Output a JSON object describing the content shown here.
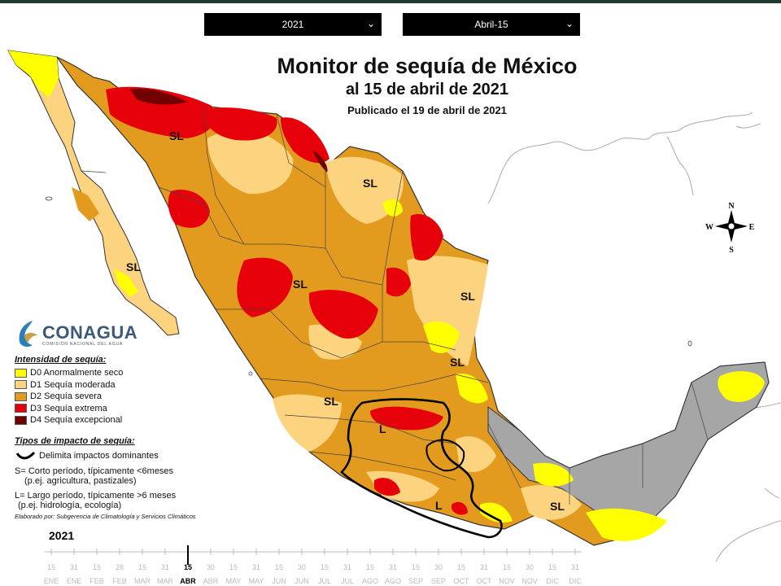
{
  "controls": {
    "year_select": "2021",
    "date_select": "Abril-15"
  },
  "map_title": {
    "title": "Monitor de sequía de México",
    "subtitle": "al 15 de abril de 2021",
    "published": "Publicado el 19 de abril de 2021"
  },
  "compass": {
    "n": "N",
    "s": "S",
    "e": "E",
    "w": "W"
  },
  "logo": {
    "name": "CONAGUA",
    "subtitle": "COMISIÓN NACIONAL DEL AGUA"
  },
  "legend": {
    "intensity_title": "Intensidad de sequía:",
    "levels": [
      {
        "code": "D0",
        "label": "D0 Anormalmente seco",
        "color": "#ffff00"
      },
      {
        "code": "D1",
        "label": "D1 Sequía moderada",
        "color": "#fcd37f"
      },
      {
        "code": "D2",
        "label": "D2 Sequía severa",
        "color": "#e39b1f"
      },
      {
        "code": "D3",
        "label": "D3 Sequía extrema",
        "color": "#e6000a"
      },
      {
        "code": "D4",
        "label": "D4 Sequía excepcional",
        "color": "#730000"
      }
    ],
    "impact_title": "Tipos de impacto de sequía:",
    "impact_line": "Delimita impactos dominantes",
    "short_term": "S= Corto período, típicamente <6meses",
    "short_term_ex": "(p.ej. agricultura, pastizales)",
    "long_term": "L= Largo período, típicamente >6 meses",
    "long_term_ex": "(p.ej. hidrología, ecología)",
    "credit": "Elaborado por: Subgerencia de Climatología y Servicios Climáticos"
  },
  "map_labels": {
    "sl": "SL",
    "l": "L"
  },
  "timeline": {
    "year": "2021",
    "days": [
      "15",
      "31",
      "15",
      "28",
      "15",
      "31",
      "15",
      "30",
      "15",
      "31",
      "15",
      "30",
      "15",
      "31",
      "15",
      "31",
      "15",
      "30",
      "15",
      "31",
      "15",
      "30",
      "15",
      "31"
    ],
    "months": [
      "ENE",
      "ENE",
      "FEB",
      "FEB",
      "MAR",
      "MAR",
      "ABR",
      "ABR",
      "MAY",
      "MAY",
      "JUN",
      "JUN",
      "JUL",
      "JUL",
      "AGO",
      "AGO",
      "SEP",
      "SEP",
      "OCT",
      "OCT",
      "NOV",
      "NOV",
      "DIC",
      "DIC"
    ],
    "selected_index": 6
  }
}
